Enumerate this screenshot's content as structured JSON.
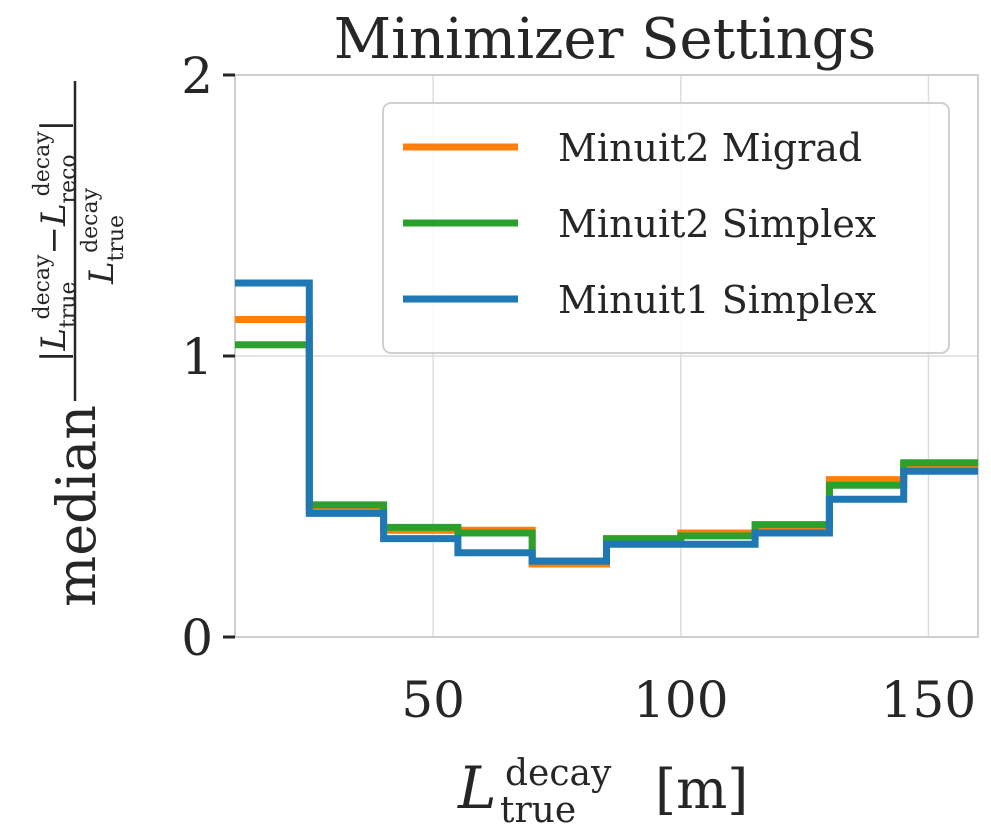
{
  "chart_data": {
    "type": "line",
    "step": true,
    "title": "Minimizer Settings",
    "xlabel": {
      "main": "L",
      "sup": "decay",
      "sub": "true",
      "unit": "[m]"
    },
    "ylabel": {
      "prefix": "median",
      "numerator": "|L_true^decay − L_reco^decay|",
      "denominator": "L_true^decay"
    },
    "xlim": [
      10,
      160
    ],
    "ylim": [
      0,
      2
    ],
    "xticks": [
      50,
      100,
      150
    ],
    "yticks": [
      0,
      1,
      2
    ],
    "grid": true,
    "legend_position": "top-right",
    "bin_edges": [
      10,
      25,
      40,
      55,
      70,
      85,
      100,
      115,
      130,
      145,
      160
    ],
    "series": [
      {
        "name": "Minuit2 Migrad",
        "color": "#ff7f0e",
        "values": [
          1.13,
          0.45,
          0.38,
          0.38,
          0.26,
          0.34,
          0.37,
          0.38,
          0.56,
          0.61
        ]
      },
      {
        "name": "Minuit2 Simplex",
        "color": "#2ca02c",
        "values": [
          1.04,
          0.47,
          0.39,
          0.37,
          0.27,
          0.35,
          0.36,
          0.4,
          0.54,
          0.62
        ]
      },
      {
        "name": "Minuit1 Simplex",
        "color": "#1f77b4",
        "values": [
          1.26,
          0.44,
          0.35,
          0.3,
          0.27,
          0.33,
          0.33,
          0.37,
          0.49,
          0.59
        ]
      }
    ]
  }
}
